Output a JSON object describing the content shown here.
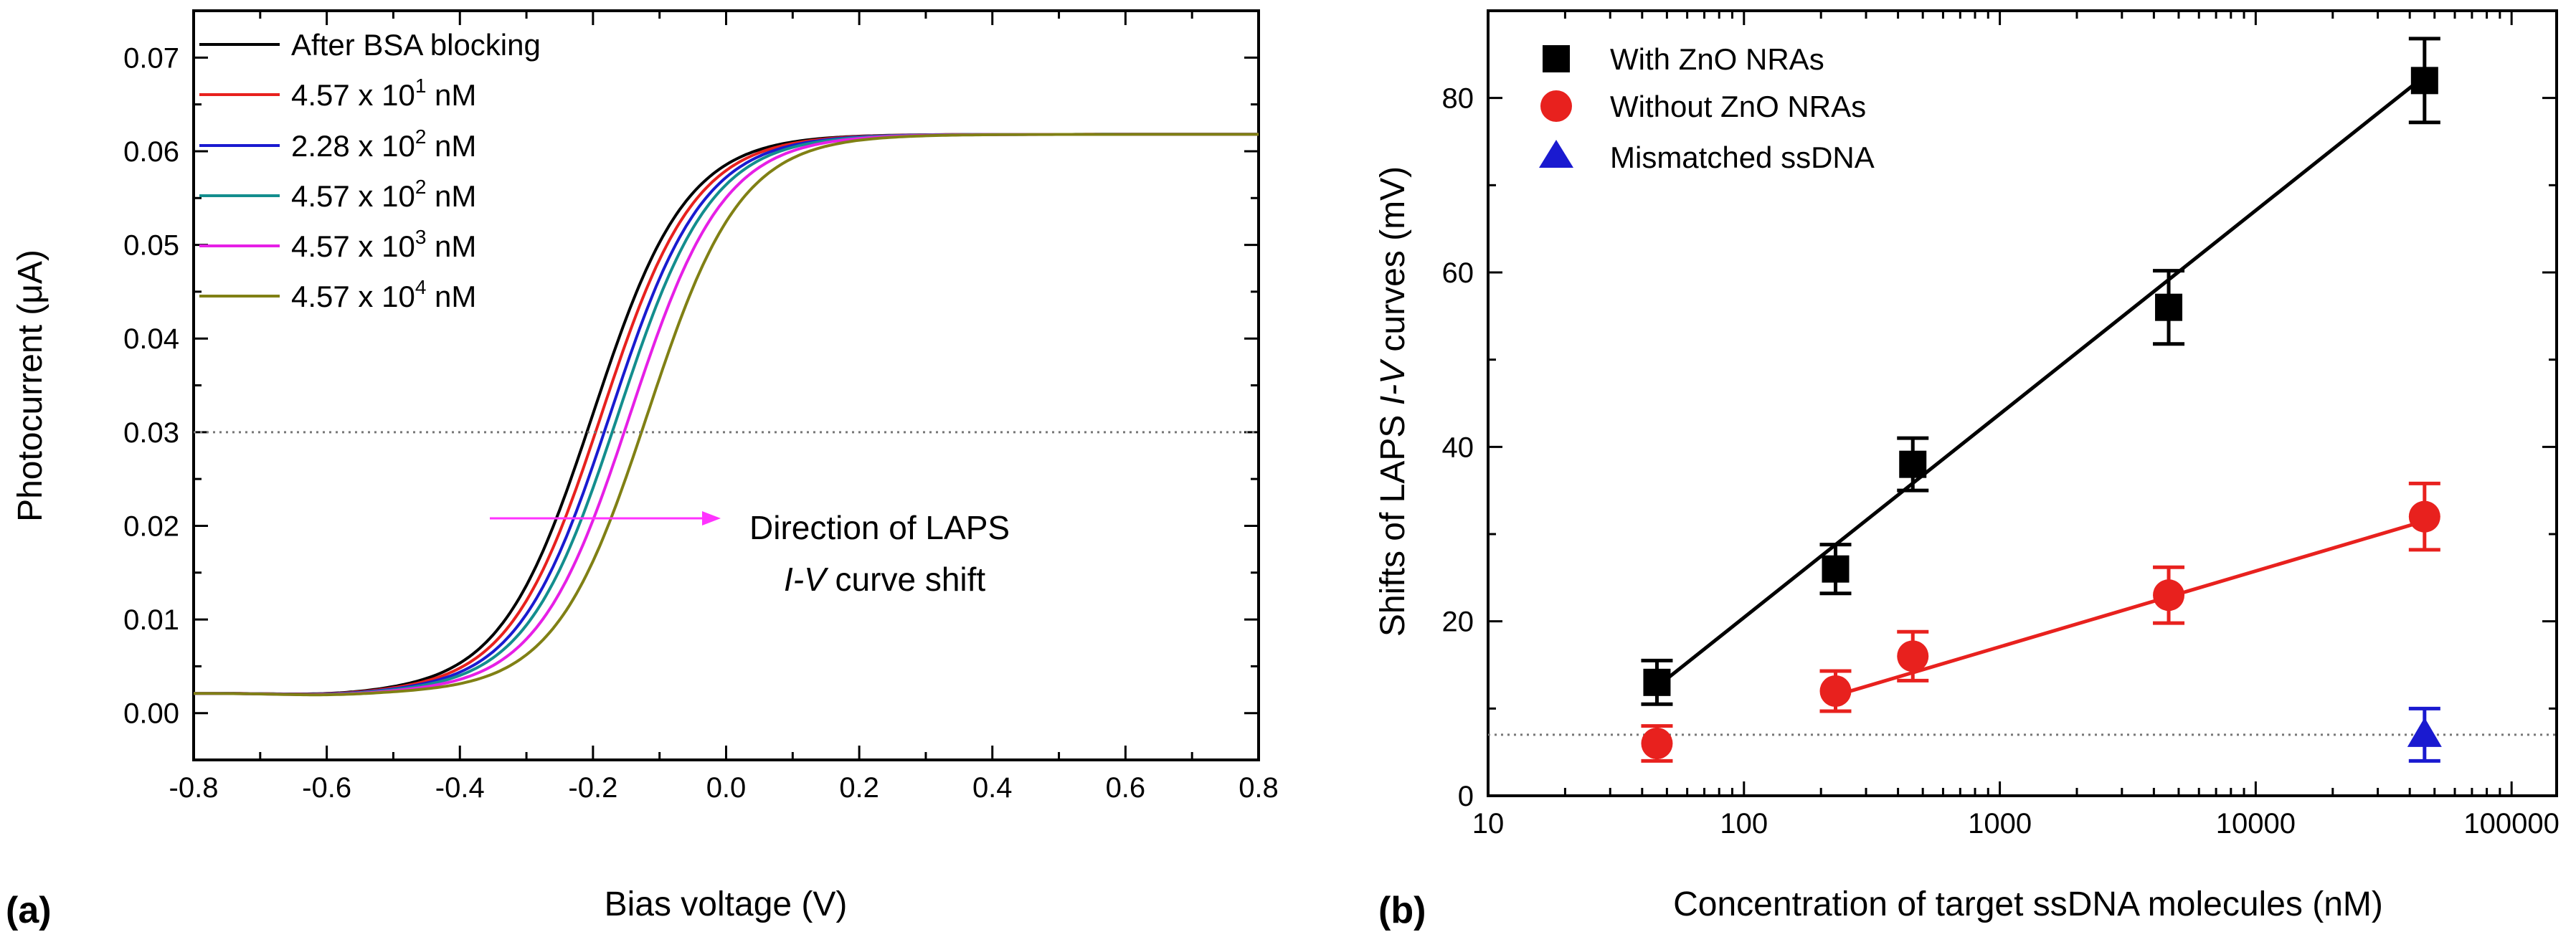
{
  "chart_data": [
    {
      "panel": "(a)",
      "type": "line",
      "xlabel": "Bias voltage (V)",
      "ylabel": "Photocurrent (μA)",
      "xlim": [
        -0.8,
        0.8
      ],
      "ylim": [
        -0.005,
        0.075
      ],
      "xticks": [
        -0.8,
        -0.6,
        -0.4,
        -0.2,
        0.0,
        0.2,
        0.4,
        0.6,
        0.8
      ],
      "xtick_labels": [
        "-0.8",
        "-0.6",
        "-0.4",
        "-0.2",
        "0.0",
        "0.2",
        "0.4",
        "0.6",
        "0.8"
      ],
      "yticks": [
        0.0,
        0.01,
        0.02,
        0.03,
        0.04,
        0.05,
        0.06,
        0.07
      ],
      "ytick_labels": [
        "0.00",
        "0.01",
        "0.02",
        "0.03",
        "0.04",
        "0.05",
        "0.06",
        "0.07"
      ],
      "reference_line": {
        "y": 0.03,
        "style": "dotted"
      },
      "annotation": {
        "line1": "Direction of LAPS",
        "line2_italic": "I-V",
        "line2_rest": " curve shift"
      },
      "legend_position": "top-left",
      "series": [
        {
          "name": "After BSA blocking",
          "base": "",
          "exponent": "",
          "unit": "",
          "color": "#000000",
          "shift": 0.0
        },
        {
          "name": "4.57 x 10",
          "base": "4.57 x 10",
          "exponent": "1",
          "unit": " nM",
          "color": "#e8211e",
          "shift": 0.013
        },
        {
          "name": "2.28 x 10",
          "base": "2.28 x 10",
          "exponent": "2",
          "unit": " nM",
          "color": "#1a1ad0",
          "shift": 0.026
        },
        {
          "name": "4.57 x 10",
          "base": "4.57 x 10",
          "exponent": "2",
          "unit": " nM",
          "color": "#138e8e",
          "shift": 0.038
        },
        {
          "name": "4.57 x 10",
          "base": "4.57 x 10",
          "exponent": "3",
          "unit": " nM",
          "color": "#e61fe6",
          "shift": 0.056
        },
        {
          "name": "4.57 x 10",
          "base": "4.57 x 10",
          "exponent": "4",
          "unit": " nM",
          "color": "#808014",
          "shift": 0.082
        }
      ]
    },
    {
      "panel": "(b)",
      "type": "scatter",
      "xscale": "log",
      "xlabel": "Concentration of target ssDNA molecules (nM)",
      "ylabel_pre": "Shifts of LAPS ",
      "ylabel_italic": "I-V",
      "ylabel_post": " curves (mV)",
      "xlim": [
        10,
        150000
      ],
      "ylim": [
        0,
        90
      ],
      "xticks": [
        10,
        100,
        1000,
        10000,
        100000
      ],
      "xtick_labels": [
        "10",
        "100",
        "1000",
        "10000",
        "100000"
      ],
      "yticks": [
        0,
        20,
        40,
        60,
        80
      ],
      "ytick_labels": [
        "0",
        "20",
        "40",
        "60",
        "80"
      ],
      "reference_line": {
        "y": 7,
        "style": "dotted"
      },
      "legend_position": "top-left",
      "series": [
        {
          "name": "With ZnO NRAs",
          "marker": "square",
          "color": "#000000",
          "x": [
            45.7,
            228,
            457,
            4570,
            45700
          ],
          "y": [
            13,
            26,
            38,
            56,
            82
          ],
          "err": [
            2.5,
            2.8,
            3.0,
            4.2,
            4.8
          ],
          "fit": {
            "x": [
              45.7,
              45700
            ],
            "y": [
              12.5,
              82.5
            ]
          }
        },
        {
          "name": "Without ZnO NRAs",
          "marker": "circle",
          "color": "#e8211e",
          "x": [
            45.7,
            228,
            457,
            4570,
            45700
          ],
          "y": [
            6,
            12,
            16,
            23,
            32
          ],
          "err": [
            2.0,
            2.3,
            2.8,
            3.2,
            3.8
          ],
          "fit": {
            "x": [
              228,
              45700
            ],
            "y": [
              11.5,
              31.5
            ]
          }
        },
        {
          "name": "Mismatched ssDNA",
          "marker": "triangle",
          "color": "#1a1ad0",
          "x": [
            45700
          ],
          "y": [
            7
          ],
          "err": [
            3.0
          ],
          "fit": null
        }
      ]
    }
  ]
}
